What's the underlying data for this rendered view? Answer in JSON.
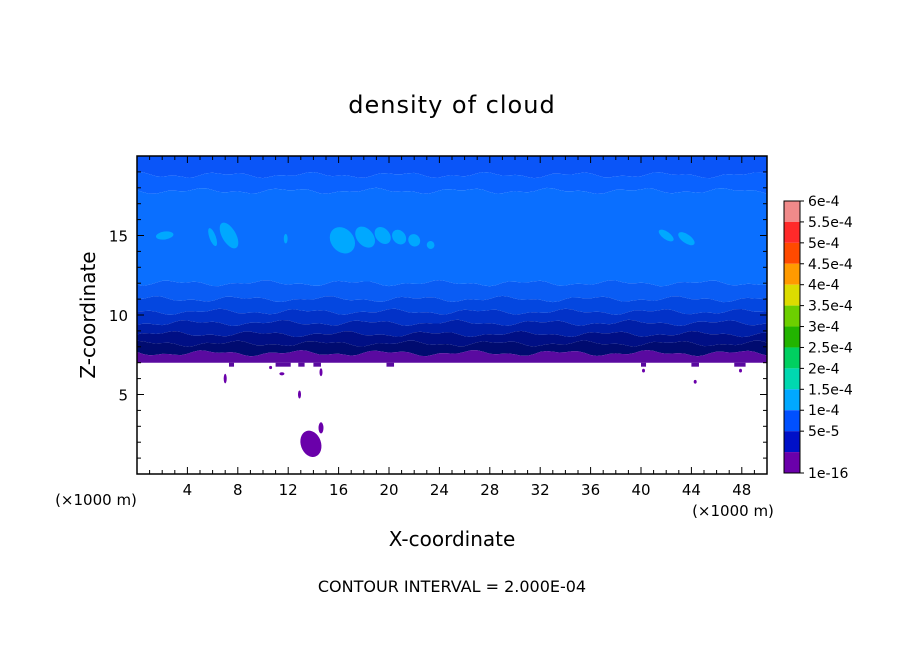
{
  "chart_data": {
    "type": "heatmap",
    "title": "density of cloud",
    "xlabel": "X-coordinate",
    "ylabel": "Z-coordinate",
    "x_unit": "(×1000 m)",
    "z_unit": "(×1000 m)",
    "xlim": [
      0,
      50
    ],
    "ylim": [
      0,
      20
    ],
    "x_ticks": [
      4,
      8,
      12,
      16,
      20,
      24,
      28,
      32,
      36,
      40,
      44,
      48
    ],
    "y_ticks": [
      5,
      10,
      15
    ],
    "contour_interval_label": "CONTOUR INTERVAL = 2.000E-04",
    "colorbar": {
      "labels": [
        "6e-4",
        "5.5e-4",
        "5e-4",
        "4.5e-4",
        "4e-4",
        "3.5e-4",
        "3e-4",
        "2.5e-4",
        "2e-4",
        "1.5e-4",
        "1e-4",
        "5e-5",
        "1e-16"
      ],
      "colors": [
        "#f08a8a",
        "#ff2a2a",
        "#ff4a00",
        "#ff9a00",
        "#dcdc00",
        "#6ccf00",
        "#22b400",
        "#00d060",
        "#00d8b0",
        "#00a8ff",
        "#0050ff",
        "#0010c8",
        "#6a00aa"
      ]
    },
    "layers": [
      {
        "z_min": 18.8,
        "z_max": 20.0,
        "level": "1e-4",
        "color": "#0a55f8"
      },
      {
        "z_min": 17.8,
        "z_max": 18.8,
        "level": "1e-4",
        "color": "#0a62ff"
      },
      {
        "z_min": 12.0,
        "z_max": 17.8,
        "level": "1e-4",
        "color": "#0a6fff"
      },
      {
        "z_min": 11.0,
        "z_max": 12.0,
        "level": "1e-4",
        "color": "#0a5cf4"
      },
      {
        "z_min": 10.2,
        "z_max": 11.0,
        "level": "1e-4",
        "color": "#0447e0"
      },
      {
        "z_min": 9.5,
        "z_max": 10.2,
        "level": "5e-5",
        "color": "#0232c8"
      },
      {
        "z_min": 8.8,
        "z_max": 9.5,
        "level": "5e-5",
        "color": "#001fa8"
      },
      {
        "z_min": 8.2,
        "z_max": 8.8,
        "level": "5e-5",
        "color": "#000f85"
      },
      {
        "z_min": 7.6,
        "z_max": 8.2,
        "level": "5e-5",
        "color": "#000b70"
      },
      {
        "z_min": 7.0,
        "z_max": 7.6,
        "level": "1e-16",
        "color": "#5a0aa0"
      }
    ],
    "patches_1_5e-4": [
      {
        "x": 2.2,
        "z": 15.0,
        "rx": 0.7,
        "rz": 0.25,
        "rot": -8
      },
      {
        "x": 6.0,
        "z": 14.9,
        "rx": 0.25,
        "rz": 0.6,
        "rot": -20
      },
      {
        "x": 7.3,
        "z": 15.0,
        "rx": 0.55,
        "rz": 0.9,
        "rot": -30
      },
      {
        "x": 11.8,
        "z": 14.8,
        "rx": 0.15,
        "rz": 0.3,
        "rot": 0
      },
      {
        "x": 16.3,
        "z": 14.7,
        "rx": 0.9,
        "rz": 0.9,
        "rot": -40
      },
      {
        "x": 18.1,
        "z": 14.9,
        "rx": 0.65,
        "rz": 0.75,
        "rot": -40
      },
      {
        "x": 19.5,
        "z": 15.0,
        "rx": 0.55,
        "rz": 0.6,
        "rot": -40
      },
      {
        "x": 20.8,
        "z": 14.9,
        "rx": 0.5,
        "rz": 0.5,
        "rot": -40
      },
      {
        "x": 22.0,
        "z": 14.7,
        "rx": 0.45,
        "rz": 0.4,
        "rot": -35
      },
      {
        "x": 23.3,
        "z": 14.4,
        "rx": 0.3,
        "rz": 0.25,
        "rot": -20
      },
      {
        "x": 42.0,
        "z": 15.0,
        "rx": 0.3,
        "rz": 0.55,
        "rot": -55
      },
      {
        "x": 43.6,
        "z": 14.8,
        "rx": 0.35,
        "rz": 0.6,
        "rot": -55
      }
    ],
    "patches_1e-16": [
      {
        "x": 13.8,
        "z": 1.9,
        "rx": 0.8,
        "rz": 0.85,
        "rot": -20
      },
      {
        "x": 14.6,
        "z": 2.9,
        "rx": 0.2,
        "rz": 0.35,
        "rot": 0
      },
      {
        "x": 12.9,
        "z": 5.0,
        "rx": 0.12,
        "rz": 0.25,
        "rot": 0
      },
      {
        "x": 7.0,
        "z": 6.0,
        "rx": 0.12,
        "rz": 0.3,
        "rot": 0
      },
      {
        "x": 10.6,
        "z": 6.7,
        "rx": 0.12,
        "rz": 0.1,
        "rot": 0
      },
      {
        "x": 11.5,
        "z": 6.3,
        "rx": 0.2,
        "rz": 0.1,
        "rot": 0
      },
      {
        "x": 14.6,
        "z": 6.4,
        "rx": 0.12,
        "rz": 0.25,
        "rot": 0
      },
      {
        "x": 40.2,
        "z": 6.5,
        "rx": 0.12,
        "rz": 0.12,
        "rot": 0
      },
      {
        "x": 44.3,
        "z": 5.8,
        "rx": 0.12,
        "rz": 0.12,
        "rot": 0
      },
      {
        "x": 47.9,
        "z": 6.5,
        "rx": 0.12,
        "rz": 0.12,
        "rot": 0
      }
    ]
  }
}
